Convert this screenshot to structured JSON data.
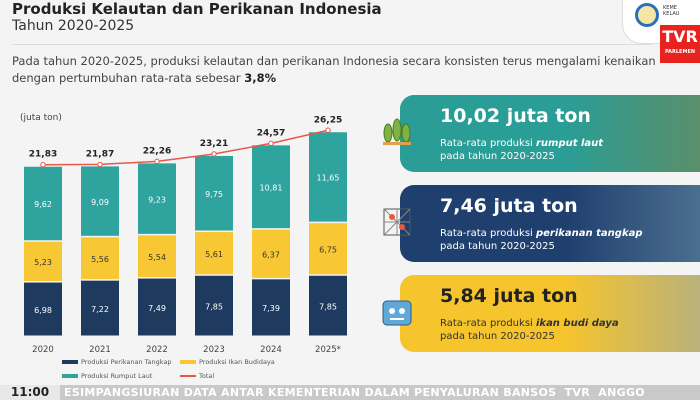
{
  "header": {
    "title": "Produksi Kelautan dan Perikanan Indonesia",
    "subtitle": "Tahun 2020-2025",
    "description": "Pada tahun 2020-2025, produksi kelautan dan perikanan Indonesia secara konsisten terus mengalami kenaikan dengan pertumbuhan rata-rata sebesar ",
    "growth": "3,8%",
    "logo_text": "KEMENTERIAN KELAUTAN DAN PERIKANAN",
    "channel_logo": "TVR",
    "channel_sub": "PARLEMEN"
  },
  "chart_data": {
    "type": "bar",
    "stacked": true,
    "ylabel": "(juta ton)",
    "categories": [
      "2020",
      "2021",
      "2022",
      "2023",
      "2024",
      "2025*"
    ],
    "series": [
      {
        "name": "Produksi Perikanan Tangkap",
        "color": "#1f3a5f",
        "values": [
          6.98,
          7.22,
          7.49,
          7.85,
          7.39,
          7.85
        ],
        "labels": [
          "6,98",
          "7,22",
          "7,49",
          "7,85",
          "7,39",
          "7,85"
        ]
      },
      {
        "name": "Produksi Ikan Budidaya",
        "color": "#f7c833",
        "values": [
          5.23,
          5.56,
          5.54,
          5.61,
          6.37,
          6.75
        ],
        "labels": [
          "5,23",
          "5,56",
          "5,54",
          "5,61",
          "6,37",
          "6,75"
        ]
      },
      {
        "name": "Produksi Rumput Laut",
        "color": "#2fa39d",
        "values": [
          9.62,
          9.09,
          9.23,
          9.75,
          10.81,
          11.65
        ],
        "labels": [
          "9,62",
          "9,09",
          "9,23",
          "9,75",
          "10,81",
          "11,65"
        ]
      }
    ],
    "total": {
      "name": "Total",
      "color": "#e8574a",
      "values": [
        21.83,
        21.87,
        22.26,
        23.21,
        24.57,
        26.25
      ],
      "labels": [
        "21,83",
        "21,87",
        "22,26",
        "23,21",
        "24,57",
        "26,25"
      ]
    },
    "ylim": [
      0,
      27
    ],
    "grid": false,
    "legend": "bottom"
  },
  "cards": [
    {
      "value": "10,02 juta ton",
      "text1": "Rata-rata produksi ",
      "bold": "rumput laut",
      "text2": "pada tahun 2020-2025",
      "color": "#2a9d96",
      "icon": "seaweed-icon"
    },
    {
      "value": "7,46 juta ton",
      "text1": "Rata-rata produksi ",
      "bold": "perikanan tangkap",
      "text2": "pada tahun 2020-2025",
      "color": "#1f3f6e",
      "icon": "fishing-net-icon"
    },
    {
      "value": "5,84 juta ton",
      "text1": "Rata-rata produksi ",
      "bold": "ikan budi daya",
      "text2": "pada tahun 2020-2025",
      "color": "#f6c42c",
      "icon": "fish-pond-icon"
    }
  ],
  "ticker": {
    "time": "11:00",
    "text": "ESIMPANGSIURAN DATA ANTAR KEMENTERIAN DALAM PENYALURAN BANSOS",
    "logo": "TVR",
    "next": "ANGGO"
  }
}
